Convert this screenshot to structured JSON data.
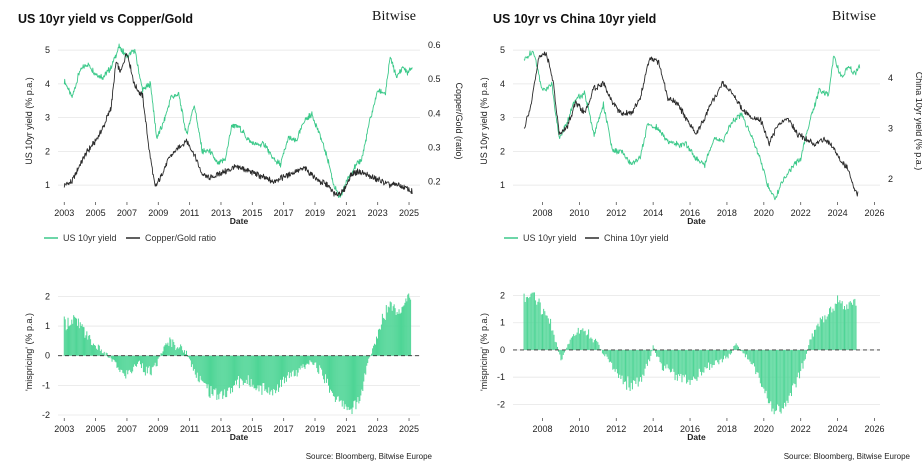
{
  "brand": "Bitwise",
  "colors": {
    "us_yield": "#3cc98a",
    "other": "#2b2b2b",
    "bars": "#4fd596",
    "zero_line": "#333333"
  },
  "sources": [
    "Source: Bloomberg, Bitwise Europe",
    "Source: Bloomberg, Bitwise Europe"
  ],
  "legends": [
    [
      {
        "label": "US 10yr yield",
        "color": "#3cc98a"
      },
      {
        "label": "Copper/Gold ratio",
        "color": "#2b2b2b"
      }
    ],
    [
      {
        "label": "US 10yr yield",
        "color": "#3cc98a"
      },
      {
        "label": "China 10yr yield",
        "color": "#2b2b2b"
      }
    ]
  ],
  "chart_data": [
    {
      "type": "line",
      "title": "US 10yr yield vs Copper/Gold",
      "xlabel": "Date",
      "ylabel": "US 10yr yield (% p.a.)",
      "ylabel_right": "Copper/Gold (ratio)",
      "xlim": [
        2002.6,
        2025.7
      ],
      "xticks": [
        2003,
        2005,
        2007,
        2009,
        2011,
        2013,
        2015,
        2017,
        2019,
        2021,
        2023,
        2025
      ],
      "ylim": [
        0.5,
        5.3
      ],
      "yticks": [
        1,
        2,
        3,
        4,
        5
      ],
      "ylim_right": [
        0.14,
        0.615
      ],
      "yticks_right": [
        0.2,
        0.3,
        0.4,
        0.5,
        0.6
      ],
      "series": [
        {
          "name": "US 10yr yield",
          "axis": "left",
          "color": "#3cc98a",
          "x": [
            2003.0,
            2003.5,
            2004.0,
            2004.5,
            2005.0,
            2005.5,
            2006.0,
            2006.5,
            2007.0,
            2007.5,
            2008.0,
            2008.5,
            2008.9,
            2009.3,
            2009.8,
            2010.3,
            2010.8,
            2011.3,
            2011.8,
            2012.3,
            2012.8,
            2013.3,
            2013.7,
            2014.2,
            2014.8,
            2015.3,
            2015.8,
            2016.3,
            2016.8,
            2017.3,
            2017.8,
            2018.3,
            2018.8,
            2019.3,
            2019.8,
            2020.2,
            2020.6,
            2021.0,
            2021.5,
            2022.0,
            2022.5,
            2023.0,
            2023.5,
            2023.8,
            2024.2,
            2024.6,
            2024.9,
            2025.2
          ],
          "y": [
            4.1,
            3.6,
            4.4,
            4.6,
            4.3,
            4.2,
            4.5,
            5.1,
            4.8,
            5.0,
            3.8,
            4.0,
            2.4,
            2.8,
            3.6,
            3.7,
            2.5,
            3.4,
            2.0,
            2.0,
            1.6,
            1.8,
            2.8,
            2.7,
            2.3,
            2.2,
            2.2,
            1.8,
            1.6,
            2.4,
            2.3,
            2.9,
            3.1,
            2.5,
            1.8,
            1.0,
            0.6,
            1.1,
            1.5,
            1.8,
            2.9,
            3.8,
            3.7,
            4.8,
            4.2,
            4.5,
            4.3,
            4.5
          ]
        },
        {
          "name": "Copper/Gold ratio",
          "axis": "right",
          "color": "#2b2b2b",
          "x": [
            2003.0,
            2003.5,
            2004.0,
            2004.5,
            2005.0,
            2005.5,
            2006.0,
            2006.3,
            2006.6,
            2007.0,
            2007.5,
            2008.0,
            2008.4,
            2008.8,
            2009.2,
            2009.7,
            2010.3,
            2010.8,
            2011.3,
            2011.8,
            2012.3,
            2012.8,
            2013.3,
            2013.8,
            2014.3,
            2014.8,
            2015.3,
            2015.8,
            2016.3,
            2016.8,
            2017.3,
            2017.8,
            2018.3,
            2018.8,
            2019.3,
            2019.8,
            2020.3,
            2020.8,
            2021.3,
            2021.8,
            2022.3,
            2022.8,
            2023.3,
            2023.8,
            2024.3,
            2024.8,
            2025.2
          ],
          "y": [
            0.19,
            0.2,
            0.25,
            0.29,
            0.32,
            0.36,
            0.42,
            0.55,
            0.52,
            0.58,
            0.48,
            0.45,
            0.3,
            0.18,
            0.22,
            0.27,
            0.3,
            0.32,
            0.28,
            0.22,
            0.21,
            0.22,
            0.23,
            0.24,
            0.24,
            0.23,
            0.22,
            0.21,
            0.2,
            0.21,
            0.22,
            0.23,
            0.24,
            0.22,
            0.2,
            0.19,
            0.16,
            0.17,
            0.22,
            0.23,
            0.22,
            0.21,
            0.2,
            0.19,
            0.19,
            0.18,
            0.17
          ]
        }
      ]
    },
    {
      "type": "bar",
      "title": "",
      "xlabel": "Date",
      "ylabel": "'mispricing' (% p.a.)",
      "xlim": [
        2002.6,
        2025.7
      ],
      "xticks": [
        2003,
        2005,
        2007,
        2009,
        2011,
        2013,
        2015,
        2017,
        2019,
        2021,
        2023,
        2025
      ],
      "ylim": [
        -2.1,
        2.35
      ],
      "yticks": [
        -2,
        -1,
        0,
        1,
        2
      ],
      "x": [
        2003.0,
        2003.6,
        2004.2,
        2004.8,
        2005.3,
        2005.8,
        2006.3,
        2006.8,
        2007.3,
        2007.8,
        2008.3,
        2008.8,
        2009.3,
        2009.8,
        2010.3,
        2010.8,
        2011.3,
        2011.8,
        2012.3,
        2012.8,
        2013.3,
        2013.8,
        2014.3,
        2014.8,
        2015.3,
        2015.8,
        2016.3,
        2016.8,
        2017.3,
        2017.8,
        2018.3,
        2018.8,
        2019.3,
        2019.8,
        2020.3,
        2020.8,
        2021.3,
        2021.8,
        2022.3,
        2022.8,
        2023.3,
        2023.8,
        2024.3,
        2024.8,
        2025.1
      ],
      "values": [
        1.1,
        1.2,
        0.9,
        0.4,
        0.2,
        0.0,
        -0.3,
        -0.7,
        -0.5,
        -0.2,
        -0.6,
        -0.4,
        0.2,
        0.5,
        0.3,
        0.1,
        -0.5,
        -0.9,
        -1.2,
        -1.3,
        -1.3,
        -1.0,
        -0.8,
        -0.9,
        -1.0,
        -1.1,
        -1.2,
        -1.0,
        -0.7,
        -0.6,
        -0.4,
        -0.2,
        -0.5,
        -0.9,
        -1.4,
        -1.7,
        -1.8,
        -1.6,
        -0.4,
        0.4,
        1.2,
        1.8,
        1.5,
        1.9,
        2.1
      ]
    },
    {
      "type": "line",
      "title": "US 10yr vs China 10yr yield",
      "xlabel": "Date",
      "ylabel": "US 10yr yield (% p.a.)",
      "ylabel_right": "China 10yr yield (% p.a.)",
      "xlim": [
        2006.4,
        2026.3
      ],
      "xticks": [
        2008,
        2010,
        2012,
        2014,
        2016,
        2018,
        2020,
        2022,
        2024,
        2026
      ],
      "ylim": [
        0.5,
        5.3
      ],
      "yticks": [
        1,
        2,
        3,
        4,
        5
      ],
      "ylim_right": [
        1.55,
        4.75
      ],
      "yticks_right": [
        2,
        3,
        4
      ],
      "series": [
        {
          "name": "US 10yr yield",
          "axis": "left",
          "color": "#3cc98a",
          "x": [
            2007.0,
            2007.5,
            2008.0,
            2008.5,
            2008.9,
            2009.3,
            2009.8,
            2010.3,
            2010.8,
            2011.3,
            2011.8,
            2012.3,
            2012.8,
            2013.3,
            2013.7,
            2014.2,
            2014.8,
            2015.3,
            2015.8,
            2016.3,
            2016.8,
            2017.3,
            2017.8,
            2018.3,
            2018.8,
            2019.3,
            2019.8,
            2020.2,
            2020.6,
            2021.0,
            2021.5,
            2022.0,
            2022.5,
            2023.0,
            2023.5,
            2023.8,
            2024.2,
            2024.6,
            2024.9,
            2025.2
          ],
          "y": [
            4.7,
            5.0,
            3.8,
            4.0,
            2.4,
            2.8,
            3.6,
            3.7,
            2.5,
            3.4,
            2.0,
            2.0,
            1.6,
            1.8,
            2.8,
            2.7,
            2.3,
            2.2,
            2.2,
            1.8,
            1.6,
            2.4,
            2.3,
            2.9,
            3.1,
            2.5,
            1.8,
            1.0,
            0.6,
            1.1,
            1.5,
            1.8,
            2.9,
            3.8,
            3.7,
            4.8,
            4.2,
            4.5,
            4.3,
            4.5
          ]
        },
        {
          "name": "China 10yr yield",
          "axis": "right",
          "color": "#2b2b2b",
          "x": [
            2007.0,
            2007.4,
            2007.8,
            2008.2,
            2008.6,
            2008.9,
            2009.3,
            2009.8,
            2010.3,
            2010.8,
            2011.3,
            2011.8,
            2012.3,
            2012.8,
            2013.3,
            2013.8,
            2014.3,
            2014.8,
            2015.3,
            2015.8,
            2016.3,
            2016.8,
            2017.3,
            2017.8,
            2018.3,
            2018.8,
            2019.3,
            2019.8,
            2020.3,
            2020.8,
            2021.3,
            2021.8,
            2022.3,
            2022.8,
            2023.3,
            2023.8,
            2024.3,
            2024.6,
            2024.9,
            2025.1
          ],
          "y": [
            3.0,
            3.5,
            4.4,
            4.5,
            3.9,
            2.9,
            3.0,
            3.5,
            3.3,
            3.8,
            3.9,
            3.5,
            3.3,
            3.3,
            3.6,
            4.4,
            4.3,
            3.6,
            3.5,
            3.2,
            2.9,
            3.2,
            3.6,
            3.9,
            3.7,
            3.4,
            3.2,
            3.2,
            2.7,
            3.1,
            3.2,
            2.9,
            2.8,
            2.7,
            2.8,
            2.6,
            2.3,
            2.2,
            1.8,
            1.7
          ]
        }
      ]
    },
    {
      "type": "bar",
      "title": "",
      "xlabel": "Date",
      "ylabel": "'mispricing' (% p.a.)",
      "xlim": [
        2006.4,
        2026.3
      ],
      "xticks": [
        2008,
        2010,
        2012,
        2014,
        2016,
        2018,
        2020,
        2022,
        2024,
        2026
      ],
      "ylim": [
        -2.5,
        2.35
      ],
      "yticks": [
        -2,
        -1,
        0,
        1,
        2
      ],
      "x": [
        2007.0,
        2007.5,
        2008.0,
        2008.5,
        2009.0,
        2009.5,
        2010.0,
        2010.5,
        2011.0,
        2011.5,
        2012.0,
        2012.5,
        2013.0,
        2013.5,
        2014.0,
        2014.5,
        2015.0,
        2015.5,
        2016.0,
        2016.5,
        2017.0,
        2017.5,
        2018.0,
        2018.5,
        2019.0,
        2019.5,
        2020.0,
        2020.5,
        2021.0,
        2021.5,
        2022.0,
        2022.5,
        2023.0,
        2023.5,
        2024.0,
        2024.5,
        2025.0
      ],
      "values": [
        1.8,
        2.1,
        1.4,
        0.9,
        -0.4,
        0.4,
        0.8,
        0.6,
        0.2,
        -0.3,
        -0.9,
        -1.2,
        -1.3,
        -0.9,
        0.1,
        -0.6,
        -0.8,
        -1.0,
        -1.1,
        -0.9,
        -0.6,
        -0.4,
        -0.3,
        0.2,
        -0.2,
        -0.7,
        -1.4,
        -2.2,
        -2.1,
        -1.5,
        -0.8,
        0.3,
        1.0,
        1.3,
        1.8,
        1.6,
        1.7
      ]
    }
  ]
}
